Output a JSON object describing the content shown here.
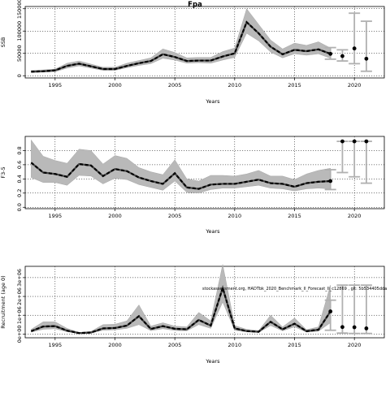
{
  "title": "Fpa",
  "note": "stockassessment.org, HADTbk_2020_Benchmark_II_Forecast_II_c12869 , git: 5b534405dda",
  "chart_data": [
    {
      "type": "line",
      "ylabel": "SSB",
      "xlabel": "Years",
      "xlim": [
        1992.5,
        2022.5
      ],
      "ylim": [
        -5000,
        155000
      ],
      "x_ticks": [
        1995,
        2000,
        2005,
        2010,
        2015,
        2020
      ],
      "y_ticks": [
        0,
        50000,
        100000,
        150000
      ],
      "y_tick_labels": [
        "0",
        "50000",
        "100000",
        "150000"
      ],
      "grid": true,
      "years": [
        1993,
        1994,
        1995,
        1996,
        1997,
        1998,
        1999,
        2000,
        2001,
        2002,
        2003,
        2004,
        2005,
        2006,
        2007,
        2008,
        2009,
        2010,
        2011,
        2012,
        2013,
        2014,
        2015,
        2016,
        2017,
        2018
      ],
      "estimate": [
        9000,
        10000,
        12000,
        22000,
        27000,
        21000,
        15000,
        15000,
        22000,
        28000,
        33000,
        48000,
        42000,
        33000,
        34000,
        34000,
        43000,
        50000,
        120000,
        95000,
        65000,
        48000,
        58000,
        55000,
        59000,
        49000
      ],
      "lower": [
        7000,
        8000,
        9000,
        17000,
        22000,
        17000,
        12000,
        12000,
        18000,
        23000,
        27000,
        39000,
        35000,
        28000,
        29000,
        28000,
        35000,
        41000,
        95000,
        78000,
        53000,
        40000,
        49000,
        46000,
        49000,
        39000
      ],
      "upper": [
        12000,
        13000,
        15000,
        28000,
        33000,
        26000,
        19000,
        19000,
        28000,
        34000,
        40000,
        60000,
        52000,
        40000,
        41000,
        41000,
        54000,
        62000,
        150000,
        115000,
        80000,
        60000,
        73000,
        68000,
        76000,
        62000
      ],
      "forecast": {
        "years": [
          2019,
          2020,
          2021
        ],
        "median": [
          44000,
          61000,
          38000
        ],
        "low": [
          33000,
          27000,
          10000
        ],
        "high": [
          58000,
          140000,
          122000
        ],
        "interval_2018": [
          37000,
          63000
        ]
      }
    },
    {
      "type": "line",
      "ylabel": "F3-5",
      "xlabel": "Years",
      "xlim": [
        1992.5,
        2022.5
      ],
      "ylim": [
        -0.02,
        1.0
      ],
      "x_ticks": [
        1995,
        2000,
        2005,
        2010,
        2015,
        2020
      ],
      "y_ticks": [
        0,
        0.2,
        0.4,
        0.6,
        0.8
      ],
      "y_tick_labels": [
        "0.0",
        "0.2",
        "0.4",
        "0.6",
        "0.8"
      ],
      "grid": true,
      "years": [
        1993,
        1994,
        1995,
        1996,
        1997,
        1998,
        1999,
        2000,
        2001,
        2002,
        2003,
        2004,
        2005,
        2006,
        2007,
        2008,
        2009,
        2010,
        2011,
        2012,
        2013,
        2014,
        2015,
        2016,
        2017,
        2018
      ],
      "estimate": [
        0.63,
        0.49,
        0.47,
        0.43,
        0.61,
        0.59,
        0.44,
        0.54,
        0.51,
        0.42,
        0.37,
        0.33,
        0.48,
        0.28,
        0.26,
        0.32,
        0.33,
        0.33,
        0.36,
        0.39,
        0.34,
        0.33,
        0.29,
        0.34,
        0.36,
        0.37
      ],
      "lower": [
        0.42,
        0.35,
        0.35,
        0.31,
        0.45,
        0.44,
        0.33,
        0.41,
        0.39,
        0.32,
        0.28,
        0.24,
        0.37,
        0.21,
        0.2,
        0.25,
        0.27,
        0.27,
        0.29,
        0.31,
        0.27,
        0.26,
        0.23,
        0.26,
        0.27,
        0.26
      ],
      "upper": [
        0.95,
        0.72,
        0.66,
        0.62,
        0.82,
        0.8,
        0.61,
        0.73,
        0.69,
        0.56,
        0.5,
        0.46,
        0.67,
        0.4,
        0.37,
        0.45,
        0.45,
        0.44,
        0.47,
        0.52,
        0.44,
        0.44,
        0.39,
        0.47,
        0.52,
        0.55
      ],
      "forecast": {
        "years": [
          2019,
          2020,
          2021
        ],
        "median": [
          0.93,
          0.93,
          0.93
        ],
        "low": [
          0.49,
          0.43,
          0.34
        ],
        "high": [
          0.93,
          0.93,
          0.93
        ],
        "interval_2018": [
          0.25,
          0.53
        ]
      }
    },
    {
      "type": "line",
      "ylabel": "Recruitment (age 0)",
      "xlabel": "Years",
      "xlim": [
        1992.5,
        2022.5
      ],
      "ylim": [
        -200000,
        3600000
      ],
      "x_ticks": [
        1995,
        2000,
        2005,
        2010,
        2015,
        2020
      ],
      "y_ticks": [
        0,
        1000000,
        2000000,
        3000000
      ],
      "y_tick_labels": [
        "0e+00",
        "1e+06",
        "2e+06",
        "3e+06"
      ],
      "grid": true,
      "years": [
        1993,
        1994,
        1995,
        1996,
        1997,
        1998,
        1999,
        2000,
        2001,
        2002,
        2003,
        2004,
        2005,
        2006,
        2007,
        2008,
        2009,
        2010,
        2011,
        2012,
        2013,
        2014,
        2015,
        2016,
        2017,
        2018
      ],
      "estimate": [
        150000,
        400000,
        420000,
        180000,
        50000,
        80000,
        300000,
        320000,
        450000,
        950000,
        270000,
        420000,
        280000,
        250000,
        750000,
        450000,
        2450000,
        300000,
        160000,
        120000,
        650000,
        250000,
        550000,
        150000,
        230000,
        1200000
      ],
      "lower": [
        100000,
        250000,
        280000,
        120000,
        30000,
        50000,
        200000,
        220000,
        300000,
        500000,
        180000,
        280000,
        190000,
        170000,
        500000,
        300000,
        1700000,
        200000,
        110000,
        80000,
        450000,
        170000,
        380000,
        100000,
        150000,
        600000
      ],
      "upper": [
        250000,
        650000,
        650000,
        300000,
        80000,
        140000,
        500000,
        520000,
        700000,
        1550000,
        420000,
        600000,
        420000,
        380000,
        1150000,
        700000,
        3700000,
        450000,
        250000,
        180000,
        1000000,
        380000,
        850000,
        230000,
        380000,
        2600000
      ],
      "forecast": {
        "years": [
          2019,
          2020,
          2021
        ],
        "median": [
          370000,
          360000,
          300000
        ],
        "low": [
          50000,
          30000,
          30000
        ],
        "high": [
          2600000,
          2600000,
          2600000
        ],
        "interval_2018": [
          200000,
          1800000
        ]
      }
    }
  ]
}
